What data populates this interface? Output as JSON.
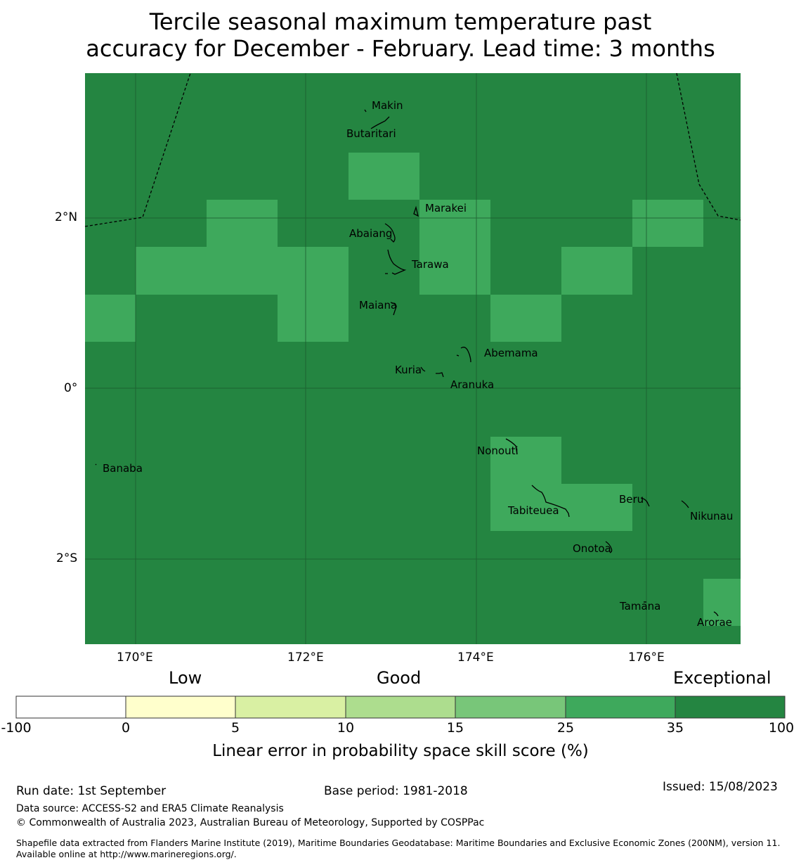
{
  "title": {
    "line1": "Tercile seasonal maximum temperature past",
    "line2": "accuracy for December - February. Lead time: 3 months"
  },
  "map": {
    "background_color": "#248541",
    "cell_color": "#3ea95c",
    "lat_ticks": [
      "2°N",
      "0°",
      "2°S"
    ],
    "lon_ticks": [
      "170°E",
      "172°E",
      "174°E",
      "176°E"
    ],
    "islands": [
      "Makin",
      "Butaritari",
      "Marakei",
      "Abaiang",
      "Tarawa",
      "Maiana",
      "Abemama",
      "Kuria",
      "Aranuka",
      "Banaba",
      "Nonouti",
      "Beru",
      "Nikunau",
      "Tabiteuea",
      "Onotoa",
      "Tamana",
      "Arorae"
    ]
  },
  "colorbar": {
    "categories": {
      "low": "Low",
      "good": "Good",
      "exceptional": "Exceptional"
    },
    "ticks": [
      "-100",
      "0",
      "5",
      "10",
      "15",
      "25",
      "35",
      "100"
    ],
    "colors": [
      "#ffffff",
      "#ffffcc",
      "#d9f0a3",
      "#addd8e",
      "#78c679",
      "#3ea95c",
      "#248541"
    ],
    "label": "Linear error in probability space skill score (%)"
  },
  "footer": {
    "run_date": "Run date: 1st September",
    "base_period": "Base period: 1981-2018",
    "issued": "Issued: 15/08/2023",
    "data_source": "Data source: ACCESS-S2 and ERA5 Climate Reanalysis",
    "copyright": "© Commonwealth of Australia 2023, Australian Bureau of Meteorology, Supported by COSPPac",
    "shapefile": "Shapefile data extracted from Flanders Marine Institute (2019), Maritime Boundaries Geodatabase: Maritime Boundaries and Exclusive Economic Zones (200NM), version 11. Available online at http://www.marineregions.org/."
  }
}
